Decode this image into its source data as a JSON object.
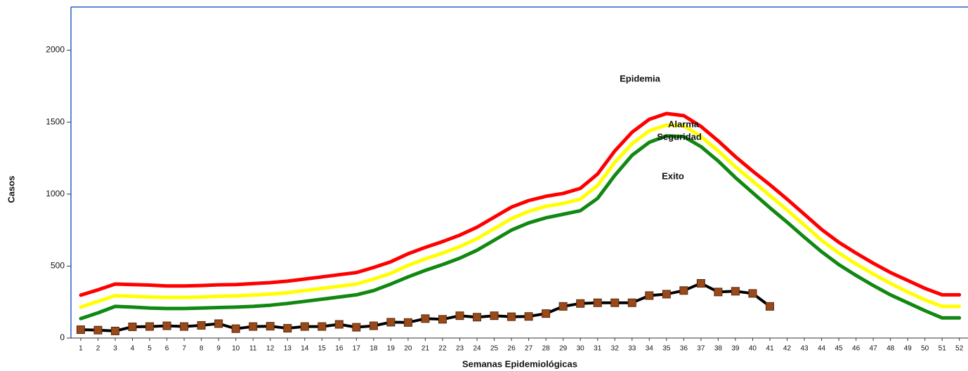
{
  "chart_data": {
    "type": "line",
    "x_label": "Semanas Epidemiológicas",
    "y_label": "Casos",
    "categories": [
      "1",
      "2",
      "3",
      "4",
      "5",
      "6",
      "7",
      "8",
      "9",
      "10",
      "11",
      "12",
      "13",
      "14",
      "15",
      "16",
      "17",
      "18",
      "19",
      "20",
      "21",
      "22",
      "23",
      "24",
      "25",
      "26",
      "27",
      "28",
      "29",
      "30",
      "31",
      "32",
      "33",
      "34",
      "35",
      "36",
      "37",
      "38",
      "39",
      "40",
      "41",
      "42",
      "43",
      "44",
      "45",
      "46",
      "47",
      "48",
      "49",
      "50",
      "51",
      "52"
    ],
    "ylim": [
      0,
      2300
    ],
    "yticks": [
      0,
      500,
      1000,
      1500,
      2000
    ],
    "series": [
      {
        "color": "#ff0000",
        "values": [
          298,
          335,
          375,
          372,
          368,
          362,
          362,
          365,
          370,
          372,
          378,
          385,
          395,
          410,
          425,
          440,
          455,
          490,
          530,
          585,
          630,
          670,
          715,
          770,
          840,
          910,
          955,
          985,
          1005,
          1040,
          1140,
          1300,
          1430,
          1520,
          1560,
          1545,
          1470,
          1370,
          1260,
          1160,
          1065,
          965,
          860,
          755,
          665,
          590,
          520,
          455,
          400,
          345,
          300,
          300
        ]
      },
      {
        "color": "#ffff00",
        "values": [
          215,
          255,
          295,
          290,
          285,
          282,
          282,
          285,
          290,
          293,
          298,
          305,
          315,
          330,
          345,
          360,
          375,
          410,
          450,
          505,
          550,
          590,
          635,
          690,
          760,
          830,
          880,
          915,
          935,
          965,
          1060,
          1220,
          1350,
          1440,
          1480,
          1475,
          1400,
          1300,
          1190,
          1090,
          990,
          890,
          785,
          680,
          590,
          515,
          445,
          380,
          320,
          265,
          220,
          220
        ]
      },
      {
        "color": "#118811",
        "values": [
          135,
          175,
          220,
          215,
          208,
          205,
          205,
          208,
          212,
          215,
          220,
          228,
          240,
          255,
          270,
          285,
          300,
          330,
          375,
          425,
          470,
          510,
          555,
          610,
          680,
          750,
          800,
          835,
          860,
          885,
          970,
          1130,
          1270,
          1360,
          1405,
          1400,
          1330,
          1230,
          1115,
          1010,
          905,
          805,
          700,
          600,
          510,
          435,
          365,
          300,
          245,
          190,
          140,
          140
        ]
      },
      {
        "color": "#000000",
        "marker_color": "#9a4a1a",
        "values": [
          58,
          55,
          49,
          78,
          80,
          85,
          80,
          88,
          100,
          65,
          80,
          82,
          68,
          80,
          80,
          95,
          75,
          85,
          110,
          108,
          135,
          130,
          155,
          145,
          155,
          148,
          150,
          170,
          220,
          240,
          245,
          245,
          245,
          295,
          305,
          330,
          380,
          320,
          325,
          310,
          220,
          null,
          null,
          null,
          null,
          null,
          null,
          null,
          null,
          null,
          null,
          null
        ]
      }
    ],
    "annotations": [
      "Epidemia",
      "Alarma",
      "Seguridad",
      "Exito"
    ]
  }
}
